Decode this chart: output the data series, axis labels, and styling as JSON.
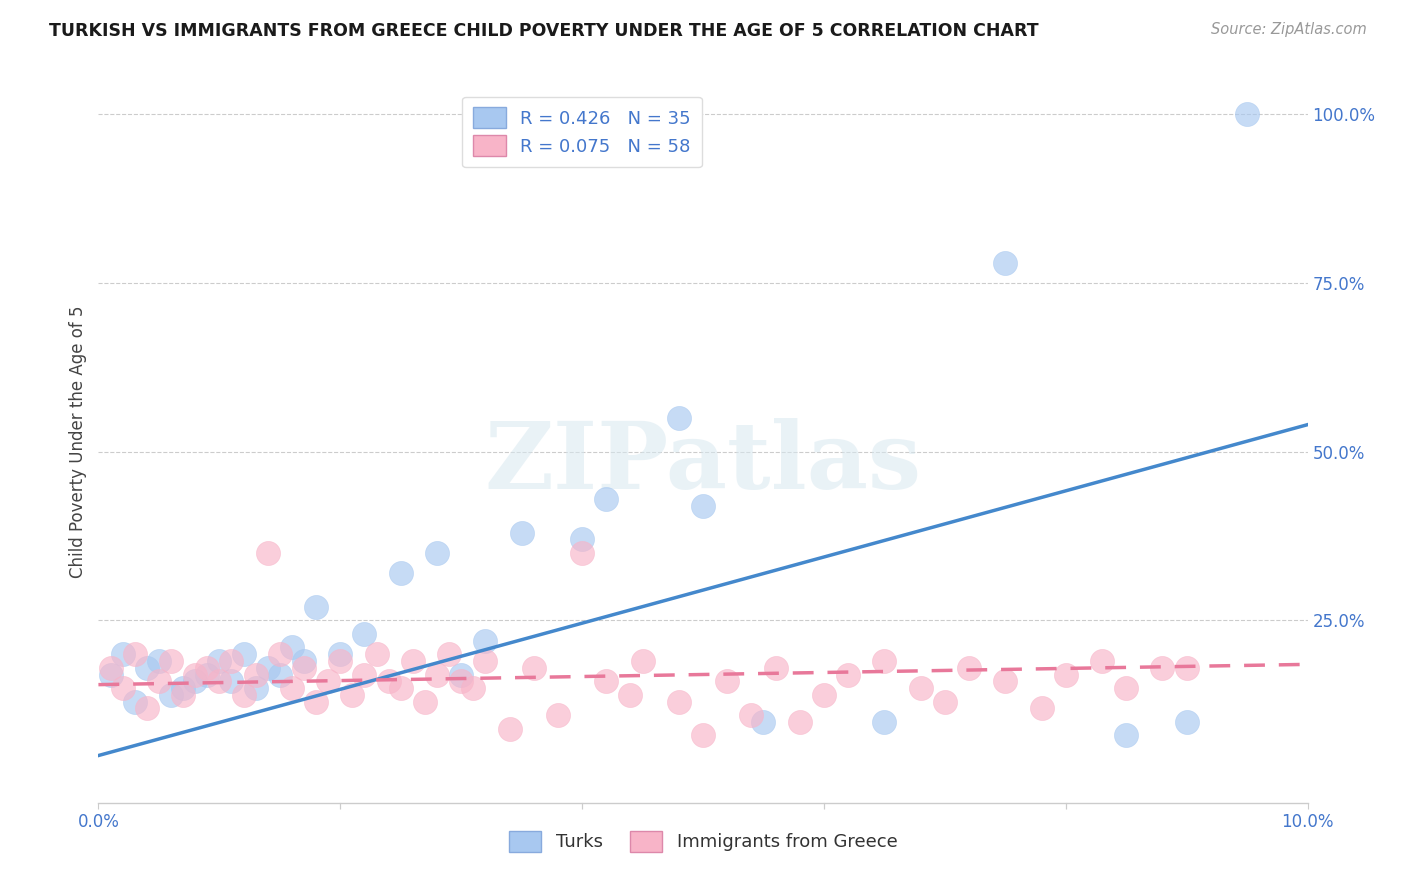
{
  "title": "TURKISH VS IMMIGRANTS FROM GREECE CHILD POVERTY UNDER THE AGE OF 5 CORRELATION CHART",
  "source": "Source: ZipAtlas.com",
  "ylabel": "Child Poverty Under the Age of 5",
  "xlim": [
    0.0,
    0.1
  ],
  "ylim": [
    -0.02,
    1.05
  ],
  "turks_R": 0.426,
  "turks_N": 35,
  "greece_R": 0.075,
  "greece_N": 58,
  "turks_color": "#a8c8f0",
  "greece_color": "#f8b4c8",
  "turks_line_color": "#4488cc",
  "greece_line_color": "#e8789a",
  "watermark_text": "ZIPatlas",
  "turks_line_x0": 0.0,
  "turks_line_y0": 0.05,
  "turks_line_x1": 0.1,
  "turks_line_y1": 0.54,
  "greece_line_x0": 0.0,
  "greece_line_y0": 0.155,
  "greece_line_x1": 0.1,
  "greece_line_y1": 0.185,
  "turks_x": [
    0.001,
    0.002,
    0.003,
    0.004,
    0.005,
    0.006,
    0.007,
    0.008,
    0.009,
    0.01,
    0.011,
    0.012,
    0.013,
    0.014,
    0.015,
    0.016,
    0.017,
    0.018,
    0.02,
    0.022,
    0.025,
    0.028,
    0.03,
    0.032,
    0.035,
    0.04,
    0.042,
    0.048,
    0.05,
    0.055,
    0.065,
    0.075,
    0.085,
    0.09,
    0.095
  ],
  "turks_y": [
    0.17,
    0.2,
    0.13,
    0.18,
    0.19,
    0.14,
    0.15,
    0.16,
    0.17,
    0.19,
    0.16,
    0.2,
    0.15,
    0.18,
    0.17,
    0.21,
    0.19,
    0.27,
    0.2,
    0.23,
    0.32,
    0.35,
    0.17,
    0.22,
    0.38,
    0.37,
    0.43,
    0.55,
    0.42,
    0.1,
    0.1,
    0.78,
    0.08,
    0.1,
    1.0
  ],
  "greece_x": [
    0.001,
    0.002,
    0.003,
    0.004,
    0.005,
    0.006,
    0.007,
    0.008,
    0.009,
    0.01,
    0.011,
    0.012,
    0.013,
    0.014,
    0.015,
    0.016,
    0.017,
    0.018,
    0.019,
    0.02,
    0.021,
    0.022,
    0.023,
    0.024,
    0.025,
    0.026,
    0.027,
    0.028,
    0.029,
    0.03,
    0.031,
    0.032,
    0.034,
    0.036,
    0.038,
    0.04,
    0.042,
    0.044,
    0.045,
    0.048,
    0.05,
    0.052,
    0.054,
    0.056,
    0.058,
    0.06,
    0.062,
    0.065,
    0.068,
    0.07,
    0.072,
    0.075,
    0.078,
    0.08,
    0.083,
    0.085,
    0.088,
    0.09
  ],
  "greece_y": [
    0.18,
    0.15,
    0.2,
    0.12,
    0.16,
    0.19,
    0.14,
    0.17,
    0.18,
    0.16,
    0.19,
    0.14,
    0.17,
    0.35,
    0.2,
    0.15,
    0.18,
    0.13,
    0.16,
    0.19,
    0.14,
    0.17,
    0.2,
    0.16,
    0.15,
    0.19,
    0.13,
    0.17,
    0.2,
    0.16,
    0.15,
    0.19,
    0.09,
    0.18,
    0.11,
    0.35,
    0.16,
    0.14,
    0.19,
    0.13,
    0.08,
    0.16,
    0.11,
    0.18,
    0.1,
    0.14,
    0.17,
    0.19,
    0.15,
    0.13,
    0.18,
    0.16,
    0.12,
    0.17,
    0.19,
    0.15,
    0.18,
    0.18
  ]
}
